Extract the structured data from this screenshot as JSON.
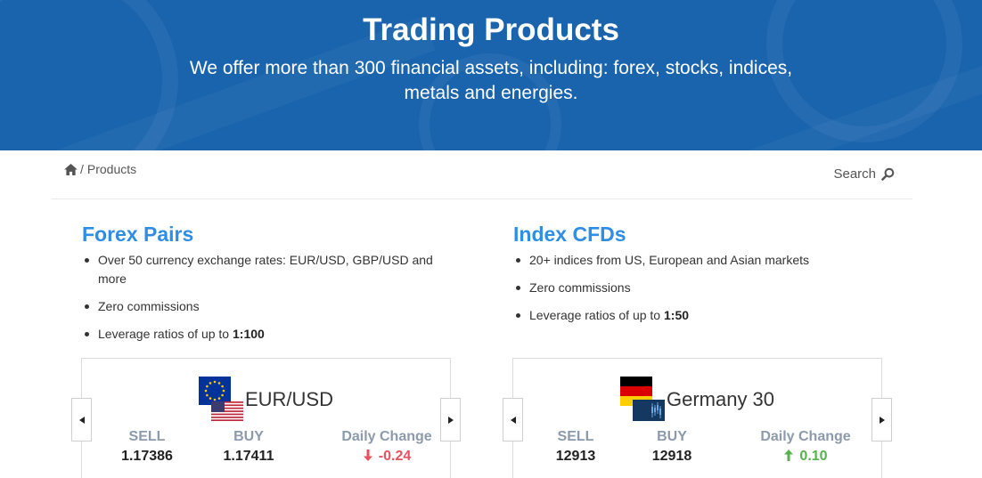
{
  "hero": {
    "title": "Trading Products",
    "subtitle": "We offer more than 300 financial assets, including: forex, stocks, indices, metals and energies."
  },
  "breadcrumb": {
    "separator": "/",
    "current": "Products"
  },
  "search": {
    "label": "Search"
  },
  "sections": [
    {
      "heading": "Forex Pairs",
      "bullets": [
        {
          "text": "Over 50 currency exchange rates: EUR/USD, GBP/USD and more"
        },
        {
          "text": "Zero commissions"
        },
        {
          "prefix": "Leverage ratios of up to ",
          "bold": "1:100"
        }
      ],
      "card": {
        "name": "EUR/USD",
        "sell_label": "SELL",
        "sell": "1.17386",
        "buy_label": "BUY",
        "buy": "1.17411",
        "change_label": "Daily Change",
        "change": "-0.24",
        "direction": "down"
      }
    },
    {
      "heading": "Index CFDs",
      "bullets": [
        {
          "text": "20+ indices from US, European and Asian markets"
        },
        {
          "text": "Zero commissions"
        },
        {
          "prefix": "Leverage ratios of up to ",
          "bold": "1:50"
        }
      ],
      "card": {
        "name": "Germany 30",
        "sell_label": "SELL",
        "sell": "12913",
        "buy_label": "BUY",
        "buy": "12918",
        "change_label": "Daily Change",
        "change": "0.10",
        "direction": "up"
      }
    }
  ],
  "colors": {
    "hero_bg": "#1a64ad",
    "heading": "#2e8ee6",
    "down": "#e8515f",
    "up": "#55b24e",
    "stat_label": "#8c9aac"
  },
  "icons": [
    "home-icon",
    "search-icon",
    "eu-flag-icon",
    "us-flag-icon",
    "germany-flag-icon",
    "index-chart-icon",
    "arrow-down-icon",
    "arrow-up-icon",
    "chevron-left-icon",
    "chevron-right-icon"
  ]
}
